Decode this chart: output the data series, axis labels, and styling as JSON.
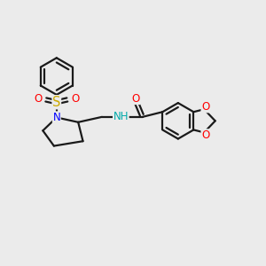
{
  "bg_color": "#ebebeb",
  "bond_color": "#1a1a1a",
  "bond_width": 1.6,
  "atom_colors": {
    "N": "#0000ff",
    "O": "#ff0000",
    "S": "#ccaa00",
    "NH": "#00aaaa"
  },
  "font_size": 8.5,
  "fig_size": [
    3.0,
    3.0
  ],
  "dpi": 100
}
